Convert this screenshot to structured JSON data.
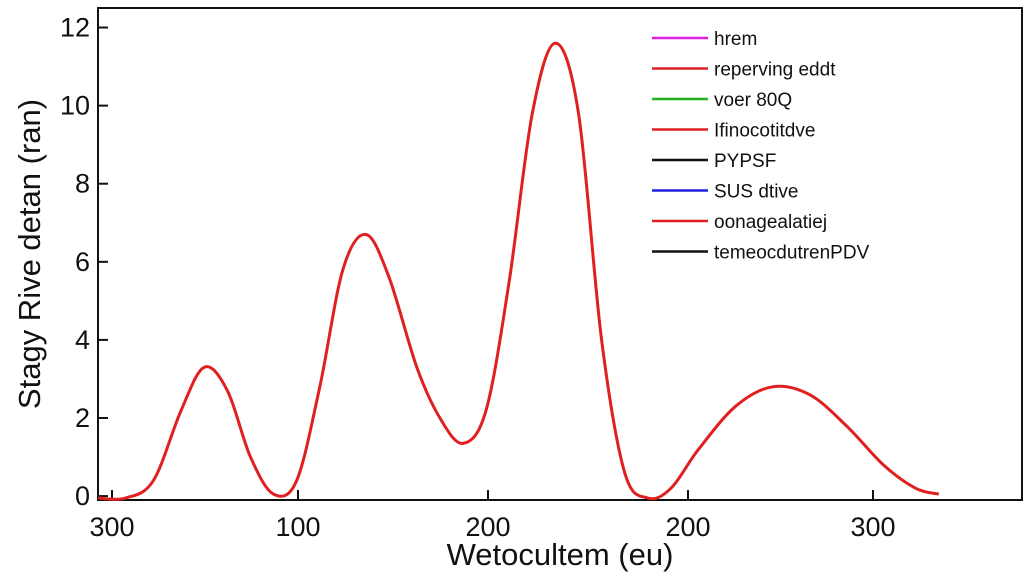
{
  "chart_data": {
    "type": "line",
    "title": "",
    "xlabel": "Wetocultem (eu)",
    "ylabel": "Stagy Rive detan (ran)",
    "x_tick_labels": [
      "300",
      "100",
      "200",
      "200",
      "300"
    ],
    "y_ticks": [
      0,
      2,
      4,
      6,
      8,
      10,
      12
    ],
    "y_tick_labels": [
      "0",
      "2",
      "4",
      "6",
      "8",
      "10",
      "12"
    ],
    "ylim": [
      -0.1,
      12.5
    ],
    "grid": false,
    "legend_position": "top-right",
    "legend": [
      {
        "label": "hrem",
        "color": "#e020e0"
      },
      {
        "label": "reperving eddt",
        "color": "#e02020"
      },
      {
        "label": "voer 80Q",
        "color": "#20b020"
      },
      {
        "label": "Ifinocotitdve",
        "color": "#e02020"
      },
      {
        "label": "PYPSF",
        "color": "#111111"
      },
      {
        "label": "SUS dtive",
        "color": "#2020e0"
      },
      {
        "label": "oonagealatiej",
        "color": "#e02020"
      },
      {
        "label": "temeocdutrenPDV",
        "color": "#111111"
      }
    ],
    "series": [
      {
        "color": "#e02020",
        "points": [
          [
            0.0,
            -0.05
          ],
          [
            0.03,
            -0.05
          ],
          [
            0.06,
            0.4
          ],
          [
            0.09,
            2.2
          ],
          [
            0.115,
            3.3
          ],
          [
            0.14,
            2.7
          ],
          [
            0.165,
            1.0
          ],
          [
            0.19,
            0.05
          ],
          [
            0.215,
            0.4
          ],
          [
            0.24,
            2.8
          ],
          [
            0.265,
            5.8
          ],
          [
            0.29,
            6.7
          ],
          [
            0.315,
            5.6
          ],
          [
            0.345,
            3.3
          ],
          [
            0.37,
            2.0
          ],
          [
            0.395,
            1.35
          ],
          [
            0.42,
            2.2
          ],
          [
            0.445,
            5.5
          ],
          [
            0.47,
            9.8
          ],
          [
            0.495,
            11.6
          ],
          [
            0.52,
            9.8
          ],
          [
            0.545,
            4.0
          ],
          [
            0.57,
            0.6
          ],
          [
            0.595,
            -0.05
          ],
          [
            0.62,
            0.2
          ],
          [
            0.65,
            1.2
          ],
          [
            0.69,
            2.3
          ],
          [
            0.73,
            2.8
          ],
          [
            0.77,
            2.6
          ],
          [
            0.81,
            1.8
          ],
          [
            0.85,
            0.8
          ],
          [
            0.885,
            0.2
          ],
          [
            0.91,
            0.05
          ]
        ]
      }
    ]
  }
}
